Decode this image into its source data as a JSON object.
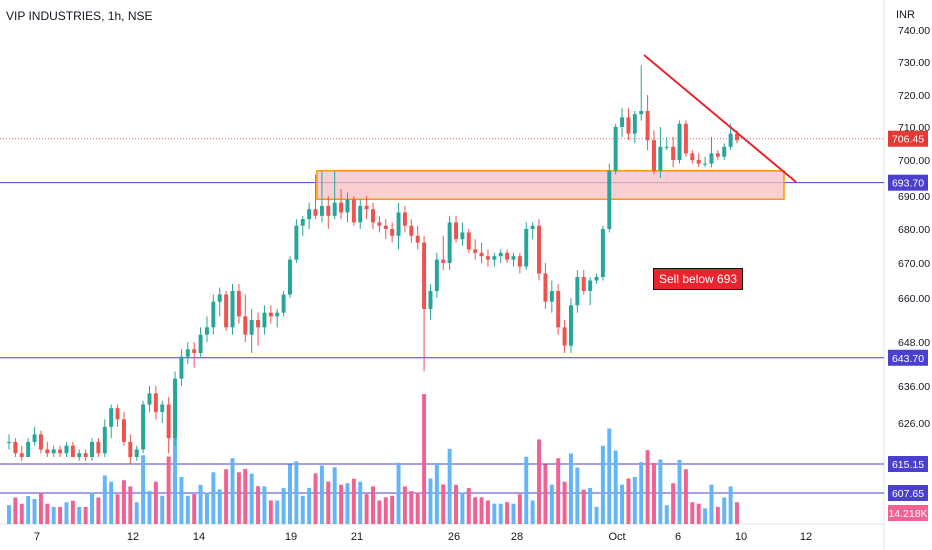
{
  "header": {
    "symbol": "VIP INDUSTRIES, 1h, NSE",
    "currency": "INR"
  },
  "colors": {
    "up": "#26a69a",
    "down": "#ef5350",
    "vol_up": "#64b5f6",
    "vol_down": "#f06292",
    "hline": "#4a3fcf",
    "zone_fill": "#f8bfc4",
    "zone_border": "#ff9800",
    "trendline": "#e8252f",
    "last_price": "#e53935"
  },
  "chart_data": {
    "type": "candlestick",
    "price_axis": {
      "range": [
        630,
        743
      ],
      "ticks": [
        "740.00",
        "730.00",
        "720.00",
        "710.00",
        "700.00",
        "690.00",
        "680.00",
        "670.00",
        "660.00",
        "648.00",
        "636.00",
        "626.00"
      ]
    },
    "date_axis_labels": [
      "7",
      "12",
      "14",
      "19",
      "21",
      "26",
      "28",
      "Oct",
      "6",
      "10",
      "12"
    ],
    "last_price_label": "706.45",
    "horizontal_levels": [
      "693.70",
      "643.70",
      "615.15",
      "607.65"
    ],
    "volume_label": "14.218K",
    "zone": {
      "from": 689,
      "to": 697
    },
    "annotation": "Sell below 693",
    "candles": [
      [
        621,
        623,
        619,
        621
      ],
      [
        621,
        622,
        617,
        618
      ],
      [
        618,
        620,
        616,
        617
      ],
      [
        617,
        622,
        617,
        621
      ],
      [
        621,
        625,
        620,
        623
      ],
      [
        623,
        624,
        618,
        619
      ],
      [
        619,
        621,
        617,
        618
      ],
      [
        618,
        620,
        617,
        619
      ],
      [
        619,
        620,
        617,
        618
      ],
      [
        618,
        621,
        617,
        620
      ],
      [
        620,
        621,
        617,
        617
      ],
      [
        617,
        619,
        616,
        618
      ],
      [
        618,
        619,
        616,
        617
      ],
      [
        617,
        622,
        616,
        621
      ],
      [
        621,
        622,
        617,
        618
      ],
      [
        618,
        627,
        617,
        625
      ],
      [
        625,
        631,
        622,
        630
      ],
      [
        630,
        631,
        625,
        627
      ],
      [
        627,
        629,
        620,
        621
      ],
      [
        621,
        623,
        615,
        617
      ],
      [
        617,
        620,
        616,
        619
      ],
      [
        619,
        632,
        618,
        631
      ],
      [
        631,
        636,
        629,
        634
      ],
      [
        634,
        636,
        627,
        629
      ],
      [
        629,
        632,
        626,
        631
      ],
      [
        631,
        633,
        618,
        622
      ],
      [
        622,
        640,
        620,
        638
      ],
      [
        638,
        646,
        636,
        644
      ],
      [
        644,
        648,
        642,
        646
      ],
      [
        646,
        648,
        641,
        645
      ],
      [
        645,
        652,
        644,
        650
      ],
      [
        650,
        655,
        648,
        652
      ],
      [
        652,
        661,
        650,
        659
      ],
      [
        659,
        663,
        655,
        661
      ],
      [
        661,
        662,
        651,
        652
      ],
      [
        652,
        664,
        650,
        662
      ],
      [
        662,
        664,
        653,
        655
      ],
      [
        655,
        661,
        648,
        650
      ],
      [
        650,
        657,
        645,
        654
      ],
      [
        654,
        656,
        647,
        652
      ],
      [
        652,
        658,
        650,
        656
      ],
      [
        656,
        658,
        653,
        655
      ],
      [
        655,
        657,
        652,
        656
      ],
      [
        656,
        662,
        655,
        661
      ],
      [
        661,
        672,
        660,
        671
      ],
      [
        671,
        683,
        670,
        681
      ],
      [
        681,
        684,
        678,
        683
      ],
      [
        683,
        688,
        680,
        686
      ],
      [
        686,
        696,
        683,
        684
      ],
      [
        684,
        697,
        682,
        687
      ],
      [
        687,
        690,
        680,
        684
      ],
      [
        684,
        697,
        683,
        688
      ],
      [
        688,
        692,
        683,
        685
      ],
      [
        685,
        691,
        682,
        689
      ],
      [
        689,
        690,
        681,
        682
      ],
      [
        682,
        689,
        680,
        687
      ],
      [
        687,
        690,
        683,
        686
      ],
      [
        686,
        688,
        680,
        682
      ],
      [
        682,
        684,
        679,
        681
      ],
      [
        681,
        683,
        677,
        680
      ],
      [
        680,
        682,
        676,
        678
      ],
      [
        678,
        688,
        674,
        685
      ],
      [
        685,
        687,
        679,
        681
      ],
      [
        681,
        683,
        676,
        678
      ],
      [
        678,
        681,
        674,
        676
      ],
      [
        676,
        678,
        640,
        657
      ],
      [
        657,
        664,
        654,
        662
      ],
      [
        662,
        673,
        660,
        671
      ],
      [
        671,
        678,
        668,
        670
      ],
      [
        670,
        684,
        668,
        682
      ],
      [
        682,
        684,
        676,
        677
      ],
      [
        677,
        682,
        675,
        679
      ],
      [
        679,
        680,
        673,
        674
      ],
      [
        674,
        677,
        671,
        673
      ],
      [
        673,
        676,
        670,
        672
      ],
      [
        672,
        674,
        669,
        671
      ],
      [
        671,
        673,
        669,
        672
      ],
      [
        672,
        674,
        670,
        673
      ],
      [
        673,
        674,
        670,
        671
      ],
      [
        671,
        673,
        669,
        672
      ],
      [
        672,
        673,
        667,
        669
      ],
      [
        669,
        682,
        668,
        680
      ],
      [
        680,
        682,
        677,
        681
      ],
      [
        681,
        683,
        665,
        667
      ],
      [
        667,
        670,
        657,
        659
      ],
      [
        659,
        665,
        656,
        662
      ],
      [
        662,
        664,
        650,
        652
      ],
      [
        652,
        654,
        645,
        647
      ],
      [
        647,
        660,
        645,
        658
      ],
      [
        658,
        668,
        656,
        666
      ],
      [
        666,
        668,
        661,
        662
      ],
      [
        662,
        666,
        658,
        665
      ],
      [
        665,
        667,
        664,
        666
      ],
      [
        666,
        681,
        665,
        680
      ],
      [
        680,
        699,
        679,
        697
      ],
      [
        697,
        711,
        696,
        710
      ],
      [
        710,
        716,
        707,
        713
      ],
      [
        713,
        716,
        706,
        708
      ],
      [
        708,
        715,
        705,
        714
      ],
      [
        714,
        729,
        712,
        715
      ],
      [
        715,
        720,
        703,
        706
      ],
      [
        706,
        709,
        696,
        697
      ],
      [
        697,
        710,
        695,
        704
      ],
      [
        704,
        707,
        703,
        704
      ],
      [
        704,
        707,
        698,
        700
      ],
      [
        700,
        712,
        699,
        711
      ],
      [
        711,
        712,
        701,
        702
      ],
      [
        702,
        703,
        699,
        700
      ],
      [
        700,
        702,
        698,
        699
      ],
      [
        699,
        701,
        698,
        699
      ],
      [
        699,
        707,
        698,
        702
      ],
      [
        702,
        703,
        700,
        701
      ],
      [
        701,
        705,
        700,
        704
      ],
      [
        704,
        711,
        703,
        708
      ],
      [
        708,
        709,
        705,
        706
      ]
    ]
  }
}
